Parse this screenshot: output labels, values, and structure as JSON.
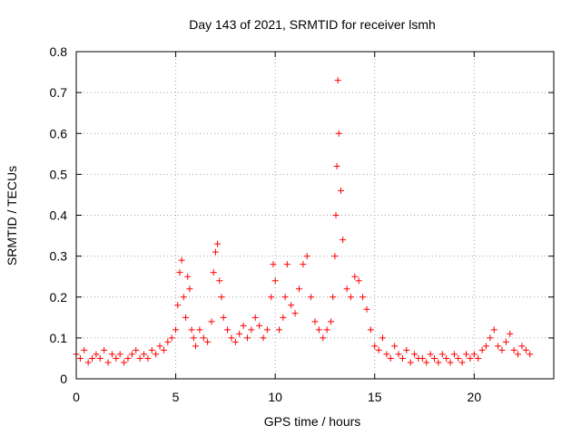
{
  "chart_data": {
    "type": "scatter",
    "title": "Day 143 of 2021, SRMTID for receiver lsmh",
    "xlabel": "GPS time / hours",
    "ylabel": "SRMTID / TECUs",
    "xlim": [
      0,
      24
    ],
    "ylim": [
      0,
      0.8
    ],
    "xticks": [
      0,
      5,
      10,
      15,
      20
    ],
    "xtick_labels": [
      "0",
      "5",
      "10",
      "15",
      "20"
    ],
    "yticks": [
      0,
      0.1,
      0.2,
      0.3,
      0.4,
      0.5,
      0.6,
      0.7,
      0.8
    ],
    "ytick_labels": [
      "0",
      "0.1",
      "0.2",
      "0.3",
      "0.4",
      "0.5",
      "0.6",
      "0.7",
      "0.8"
    ],
    "grid": true,
    "marker": "+",
    "color": "#ff0000",
    "series": [
      {
        "name": "SRMTID",
        "x": [
          0.0,
          0.2,
          0.4,
          0.6,
          0.8,
          1.0,
          1.2,
          1.4,
          1.6,
          1.8,
          2.0,
          2.2,
          2.4,
          2.6,
          2.8,
          3.0,
          3.2,
          3.4,
          3.6,
          3.8,
          4.0,
          4.2,
          4.4,
          4.6,
          4.8,
          5.0,
          5.1,
          5.2,
          5.3,
          5.4,
          5.5,
          5.6,
          5.7,
          5.8,
          5.9,
          6.0,
          6.2,
          6.4,
          6.6,
          6.8,
          6.9,
          7.0,
          7.1,
          7.2,
          7.3,
          7.4,
          7.6,
          7.8,
          8.0,
          8.2,
          8.4,
          8.6,
          8.8,
          9.0,
          9.2,
          9.4,
          9.6,
          9.8,
          9.9,
          10.0,
          10.2,
          10.4,
          10.5,
          10.6,
          10.8,
          11.0,
          11.2,
          11.4,
          11.6,
          11.8,
          12.0,
          12.2,
          12.4,
          12.6,
          12.8,
          12.9,
          13.0,
          13.05,
          13.1,
          13.15,
          13.2,
          13.3,
          13.4,
          13.6,
          13.8,
          14.0,
          14.2,
          14.4,
          14.6,
          14.8,
          15.0,
          15.2,
          15.4,
          15.6,
          15.8,
          16.0,
          16.2,
          16.4,
          16.6,
          16.8,
          17.0,
          17.2,
          17.4,
          17.6,
          17.8,
          18.0,
          18.2,
          18.4,
          18.6,
          18.8,
          19.0,
          19.2,
          19.4,
          19.6,
          19.8,
          20.0,
          20.2,
          20.4,
          20.6,
          20.8,
          21.0,
          21.2,
          21.4,
          21.6,
          21.8,
          22.0,
          22.2,
          22.4,
          22.6,
          22.8
        ],
        "y": [
          0.06,
          0.05,
          0.07,
          0.04,
          0.05,
          0.06,
          0.05,
          0.07,
          0.04,
          0.06,
          0.05,
          0.06,
          0.04,
          0.05,
          0.06,
          0.07,
          0.05,
          0.06,
          0.05,
          0.07,
          0.06,
          0.08,
          0.07,
          0.09,
          0.1,
          0.12,
          0.18,
          0.26,
          0.29,
          0.2,
          0.15,
          0.25,
          0.22,
          0.12,
          0.1,
          0.08,
          0.12,
          0.1,
          0.09,
          0.14,
          0.26,
          0.31,
          0.33,
          0.24,
          0.2,
          0.15,
          0.12,
          0.1,
          0.09,
          0.11,
          0.13,
          0.1,
          0.12,
          0.15,
          0.13,
          0.1,
          0.12,
          0.2,
          0.28,
          0.24,
          0.12,
          0.15,
          0.2,
          0.28,
          0.18,
          0.16,
          0.22,
          0.28,
          0.3,
          0.2,
          0.14,
          0.12,
          0.1,
          0.12,
          0.14,
          0.2,
          0.3,
          0.4,
          0.52,
          0.73,
          0.6,
          0.46,
          0.34,
          0.22,
          0.2,
          0.25,
          0.24,
          0.2,
          0.17,
          0.12,
          0.08,
          0.07,
          0.1,
          0.06,
          0.05,
          0.08,
          0.06,
          0.05,
          0.07,
          0.04,
          0.06,
          0.05,
          0.05,
          0.04,
          0.06,
          0.05,
          0.04,
          0.06,
          0.05,
          0.04,
          0.06,
          0.05,
          0.04,
          0.06,
          0.05,
          0.06,
          0.05,
          0.07,
          0.08,
          0.1,
          0.12,
          0.08,
          0.07,
          0.09,
          0.11,
          0.07,
          0.06,
          0.08,
          0.07,
          0.06
        ]
      }
    ]
  }
}
